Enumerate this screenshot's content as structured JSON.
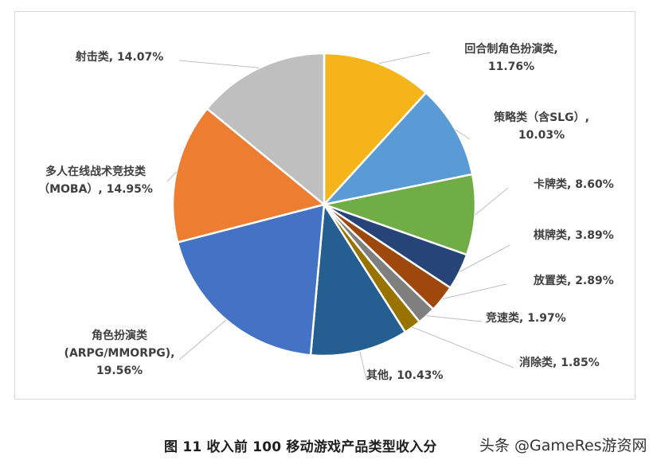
{
  "chart_data": {
    "type": "pie",
    "slices": [
      {
        "label_lines": [
          "回合制角色扮演类,",
          "11.76%"
        ],
        "value": 11.76,
        "color": "#F4B41A"
      },
      {
        "label_lines": [
          "策略类（含SLG）,",
          "10.03%"
        ],
        "value": 10.03,
        "color": "#5B9BD5"
      },
      {
        "label_lines": [
          "卡牌类, 8.60%"
        ],
        "value": 8.6,
        "color": "#70AD47"
      },
      {
        "label_lines": [
          "棋牌类, 3.89%"
        ],
        "value": 3.89,
        "color": "#264478"
      },
      {
        "label_lines": [
          "放置类, 2.89%"
        ],
        "value": 2.89,
        "color": "#9E480E"
      },
      {
        "label_lines": [
          "竞速类, 1.97%"
        ],
        "value": 1.97,
        "color": "#7F7F7F"
      },
      {
        "label_lines": [
          "消除类, 1.85%"
        ],
        "value": 1.85,
        "color": "#997300"
      },
      {
        "label_lines": [
          "其他, 10.43%"
        ],
        "value": 10.43,
        "color": "#255E91"
      },
      {
        "label_lines": [
          "角色扮演类",
          "(ARPG/MMORPG),",
          "19.56%"
        ],
        "value": 19.56,
        "color": "#4472C4"
      },
      {
        "label_lines": [
          "多人在线战术竞技类",
          "（MOBA）, 14.95%"
        ],
        "value": 14.95,
        "color": "#ED7D31"
      },
      {
        "label_lines": [
          "射击类, 14.07%"
        ],
        "value": 14.07,
        "color": "#BFBFBF"
      }
    ]
  },
  "caption": "图 11 收入前 100 移动游戏产品类型收入分",
  "watermark": "头条 @GameRes游资网"
}
